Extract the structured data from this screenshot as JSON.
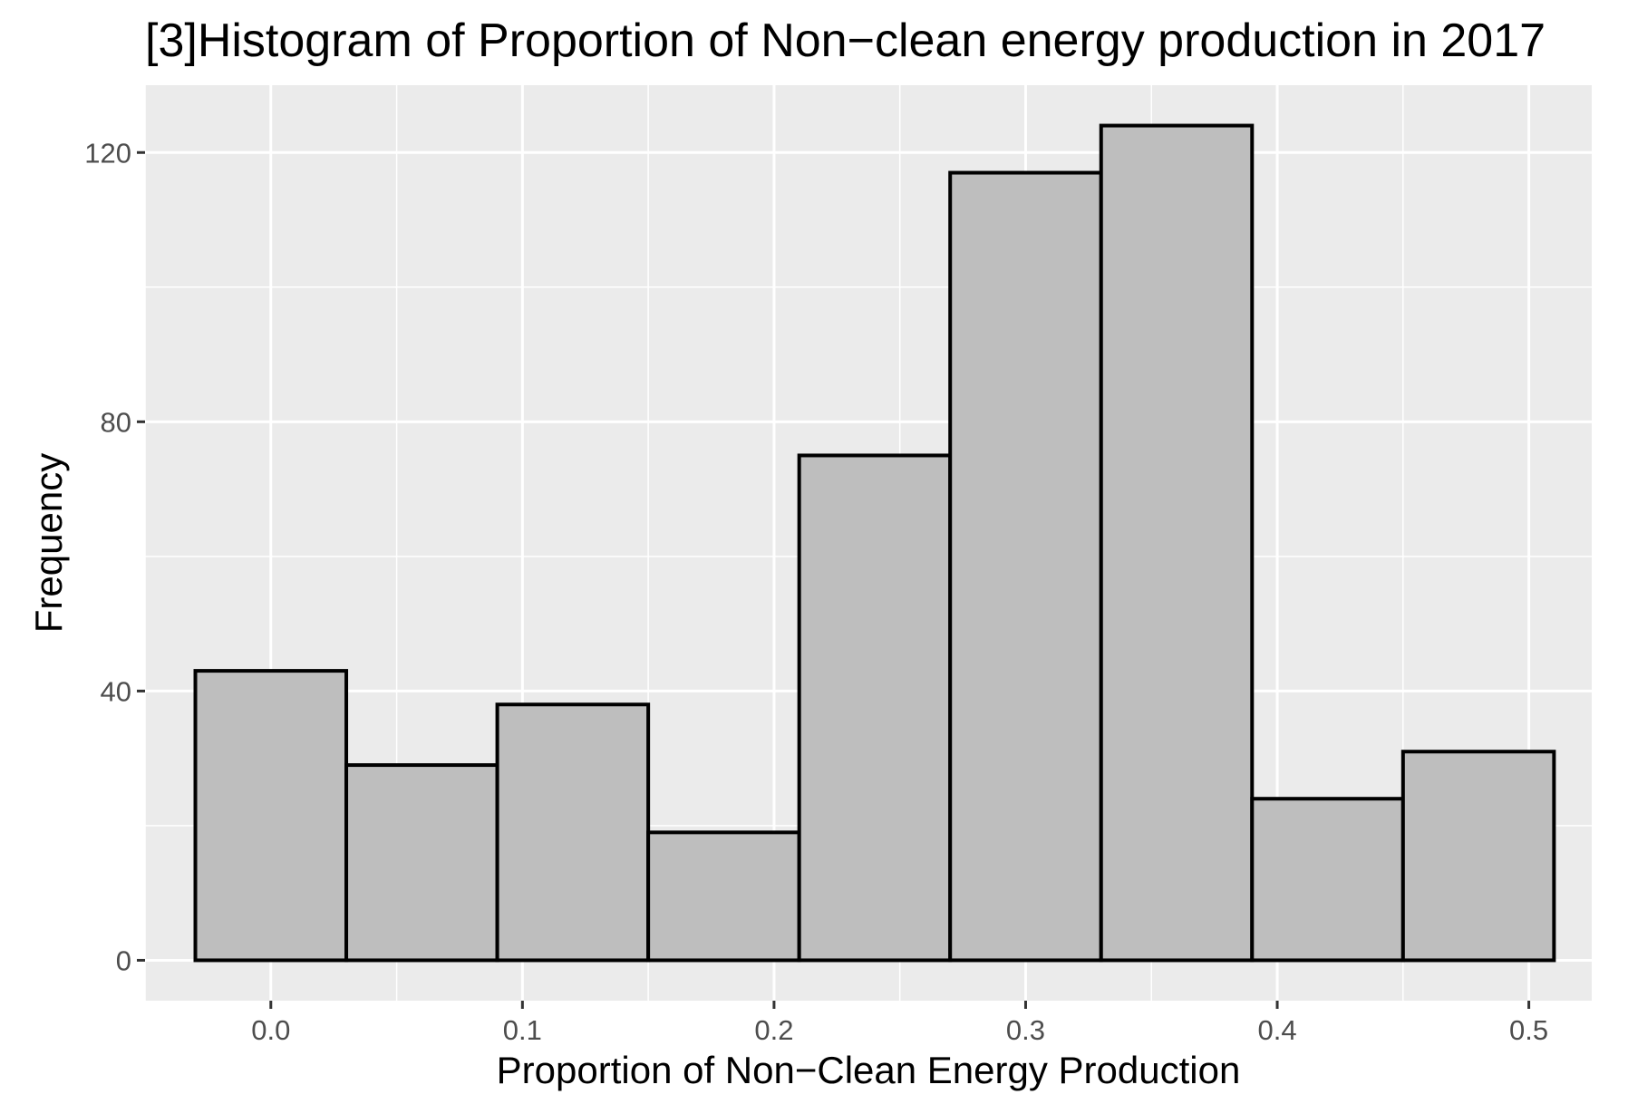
{
  "chart_data": {
    "type": "bar",
    "title": "[3]Histogram of Proportion of Non−clean energy production in 2017",
    "xlabel": "Proportion of Non−Clean Energy Production",
    "ylabel": "Frequency",
    "xlim": [
      -0.05,
      0.525
    ],
    "ylim": [
      -6,
      130
    ],
    "x_ticks": [
      0.0,
      0.1,
      0.2,
      0.3,
      0.4,
      0.5
    ],
    "x_tick_labels": [
      "0.0",
      "0.1",
      "0.2",
      "0.3",
      "0.4",
      "0.5"
    ],
    "y_ticks": [
      0,
      40,
      80,
      120
    ],
    "y_tick_labels": [
      "0",
      "40",
      "80",
      "120"
    ],
    "x_minor_gridlines": [
      -0.05,
      0.05,
      0.15,
      0.25,
      0.35,
      0.45
    ],
    "y_minor_gridlines": [
      20,
      60,
      100
    ],
    "grid": true,
    "legend": "none",
    "bins": [
      {
        "x_start": -0.03,
        "x_end": 0.03,
        "count": 43
      },
      {
        "x_start": 0.03,
        "x_end": 0.09,
        "count": 29
      },
      {
        "x_start": 0.09,
        "x_end": 0.15,
        "count": 38
      },
      {
        "x_start": 0.15,
        "x_end": 0.21,
        "count": 19
      },
      {
        "x_start": 0.21,
        "x_end": 0.27,
        "count": 75
      },
      {
        "x_start": 0.27,
        "x_end": 0.33,
        "count": 117
      },
      {
        "x_start": 0.33,
        "x_end": 0.39,
        "count": 124
      },
      {
        "x_start": 0.39,
        "x_end": 0.45,
        "count": 24
      },
      {
        "x_start": 0.45,
        "x_end": 0.51,
        "count": 31
      }
    ],
    "colors": {
      "panel_background": "#ebebeb",
      "gridline": "#ffffff",
      "bar_fill": "#bebebe",
      "bar_outline": "#000000",
      "tick_text": "#4d4d4d",
      "tick_mark": "#333333"
    }
  }
}
